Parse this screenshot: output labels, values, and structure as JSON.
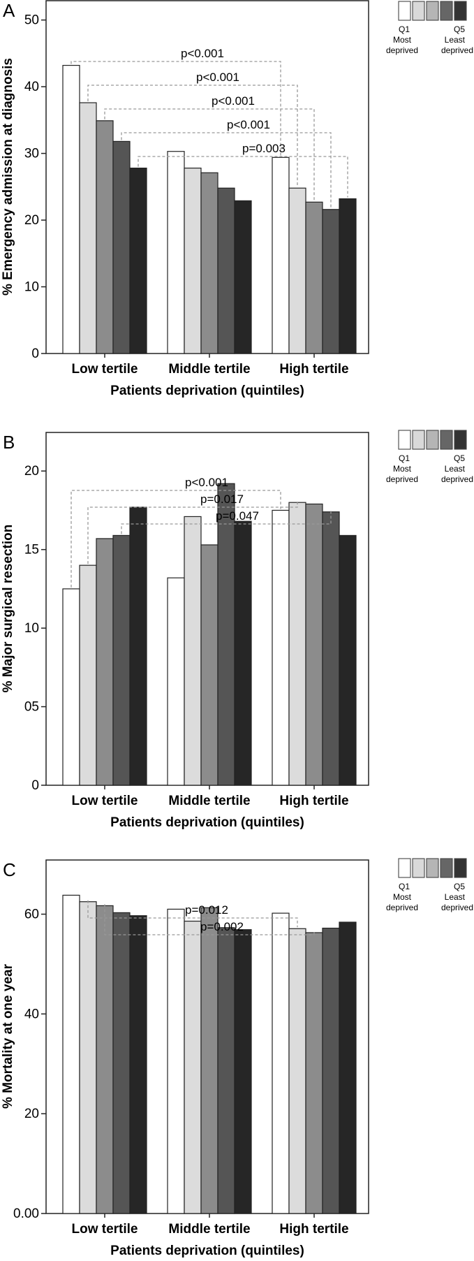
{
  "legend": {
    "q1_label": "Q1",
    "q1_sub1": "Most",
    "q1_sub2": "deprived",
    "q5_label": "Q5",
    "q5_sub1": "Least",
    "q5_sub2": "deprived",
    "swatch_colors": [
      "#ffffff",
      "#d9d9d9",
      "#b5b5b5",
      "#666666",
      "#333333"
    ]
  },
  "bar_colors": [
    "#ffffff",
    "#dcdcdc",
    "#8c8c8c",
    "#555555",
    "#262626"
  ],
  "chart_data": [
    {
      "type": "bar",
      "panel_letter": "A",
      "title": "",
      "xlabel": "Patients deprivation (quintiles)",
      "ylabel": "% Emergency admission at diagnosis",
      "categories": [
        "Low tertile",
        "Middle tertile",
        "High tertile"
      ],
      "series": [
        {
          "values": [
            43.2,
            30.3,
            29.4
          ]
        },
        {
          "values": [
            37.6,
            27.8,
            24.8
          ]
        },
        {
          "values": [
            34.9,
            27.1,
            22.7
          ]
        },
        {
          "values": [
            31.8,
            24.8,
            21.6
          ]
        },
        {
          "values": [
            27.8,
            22.9,
            23.2
          ]
        }
      ],
      "ylim": [
        0,
        53
      ],
      "yticks": [
        0,
        10,
        20,
        30,
        40,
        50
      ],
      "ytick_labels": [
        "0",
        "10",
        "20",
        "30",
        "40",
        "50"
      ],
      "grid": false,
      "annotations": [
        {
          "text": "p<0.001",
          "series": 0
        },
        {
          "text": "p<0.001",
          "series": 1
        },
        {
          "text": "p<0.001",
          "series": 2
        },
        {
          "text": "p<0.001",
          "series": 3
        },
        {
          "text": "p=0.003",
          "series": 4
        }
      ]
    },
    {
      "type": "bar",
      "panel_letter": "B",
      "title": "",
      "xlabel": "Patients deprivation (quintiles)",
      "ylabel": "% Major surgical resection",
      "categories": [
        "Low tertile",
        "Middle tertile",
        "High tertile"
      ],
      "series": [
        {
          "values": [
            12.5,
            13.2,
            17.5
          ]
        },
        {
          "values": [
            14.0,
            17.1,
            18.0
          ]
        },
        {
          "values": [
            15.7,
            15.3,
            17.9
          ]
        },
        {
          "values": [
            15.9,
            19.2,
            17.4
          ]
        },
        {
          "values": [
            17.7,
            16.8,
            15.9
          ]
        }
      ],
      "ylim": [
        0,
        22.5
      ],
      "yticks": [
        0,
        5,
        10,
        15,
        20
      ],
      "ytick_labels": [
        "0",
        "05",
        "10",
        "15",
        "20"
      ],
      "grid": false,
      "annotations": [
        {
          "text": "p<0.001",
          "series": 0
        },
        {
          "text": "p=0.017",
          "series": 1
        },
        {
          "text": "p=0.047",
          "series": 3
        }
      ]
    },
    {
      "type": "bar",
      "panel_letter": "C",
      "title": "",
      "xlabel": "Patients deprivation (quintiles)",
      "ylabel": "% Mortality at one year",
      "categories": [
        "Low tertile",
        "Middle tertile",
        "High tertile"
      ],
      "series": [
        {
          "values": [
            63.8,
            61.0,
            60.2
          ]
        },
        {
          "values": [
            62.5,
            58.6,
            57.1
          ]
        },
        {
          "values": [
            61.7,
            61.3,
            56.3
          ]
        },
        {
          "values": [
            60.3,
            57.3,
            57.2
          ]
        },
        {
          "values": [
            59.7,
            56.9,
            58.4
          ]
        }
      ],
      "ylim": [
        0,
        71
      ],
      "yticks": [
        0,
        20,
        40,
        60
      ],
      "ytick_labels": [
        "0.00",
        "20",
        "40",
        "60"
      ],
      "grid": false,
      "annotations": [
        {
          "text": "p=0.012",
          "series": 1
        },
        {
          "text": "p=0.002",
          "series": 2
        }
      ]
    }
  ]
}
